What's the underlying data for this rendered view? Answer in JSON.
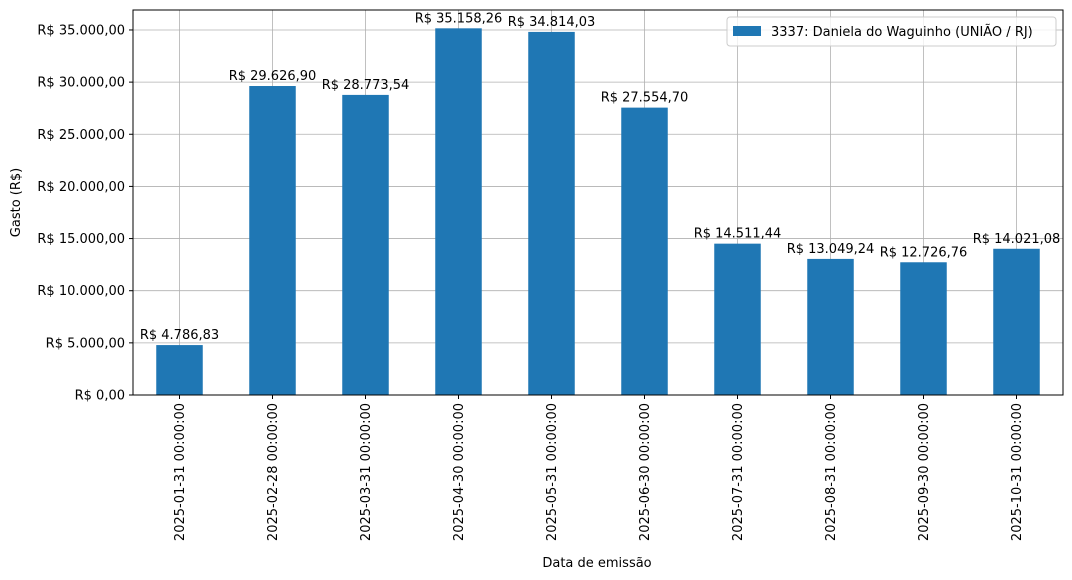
{
  "chart_data": {
    "type": "bar",
    "categories": [
      "2025-01-31 00:00:00",
      "2025-02-28 00:00:00",
      "2025-03-31 00:00:00",
      "2025-04-30 00:00:00",
      "2025-05-31 00:00:00",
      "2025-06-30 00:00:00",
      "2025-07-31 00:00:00",
      "2025-08-31 00:00:00",
      "2025-09-30 00:00:00",
      "2025-10-31 00:00:00"
    ],
    "values": [
      4786.83,
      29626.9,
      28773.54,
      35158.26,
      34814.03,
      27554.7,
      14511.44,
      13049.24,
      12726.76,
      14021.08
    ],
    "value_labels": [
      "R$ 4.786,83",
      "R$ 29.626,90",
      "R$ 28.773,54",
      "R$ 35.158,26",
      "R$ 34.814,03",
      "R$ 27.554,70",
      "R$ 14.511,44",
      "R$ 13.049,24",
      "R$ 12.726,76",
      "R$ 14.021,08"
    ],
    "xlabel": "Data de emissão",
    "ylabel": "Gasto (R$)",
    "ylim": [
      0,
      36915
    ],
    "y_ticks": [
      0,
      5000,
      10000,
      15000,
      20000,
      25000,
      30000,
      35000
    ],
    "y_tick_labels": [
      "R$ 0,00",
      "R$ 5.000,00",
      "R$ 10.000,00",
      "R$ 15.000,00",
      "R$ 20.000,00",
      "R$ 25.000,00",
      "R$ 30.000,00",
      "R$ 35.000,00"
    ],
    "grid": true,
    "legend_placement": "top-right",
    "series": [
      {
        "name": "3337: Daniela do Waguinho (UNIÃO / RJ)",
        "color": "#1f77b4"
      }
    ]
  }
}
